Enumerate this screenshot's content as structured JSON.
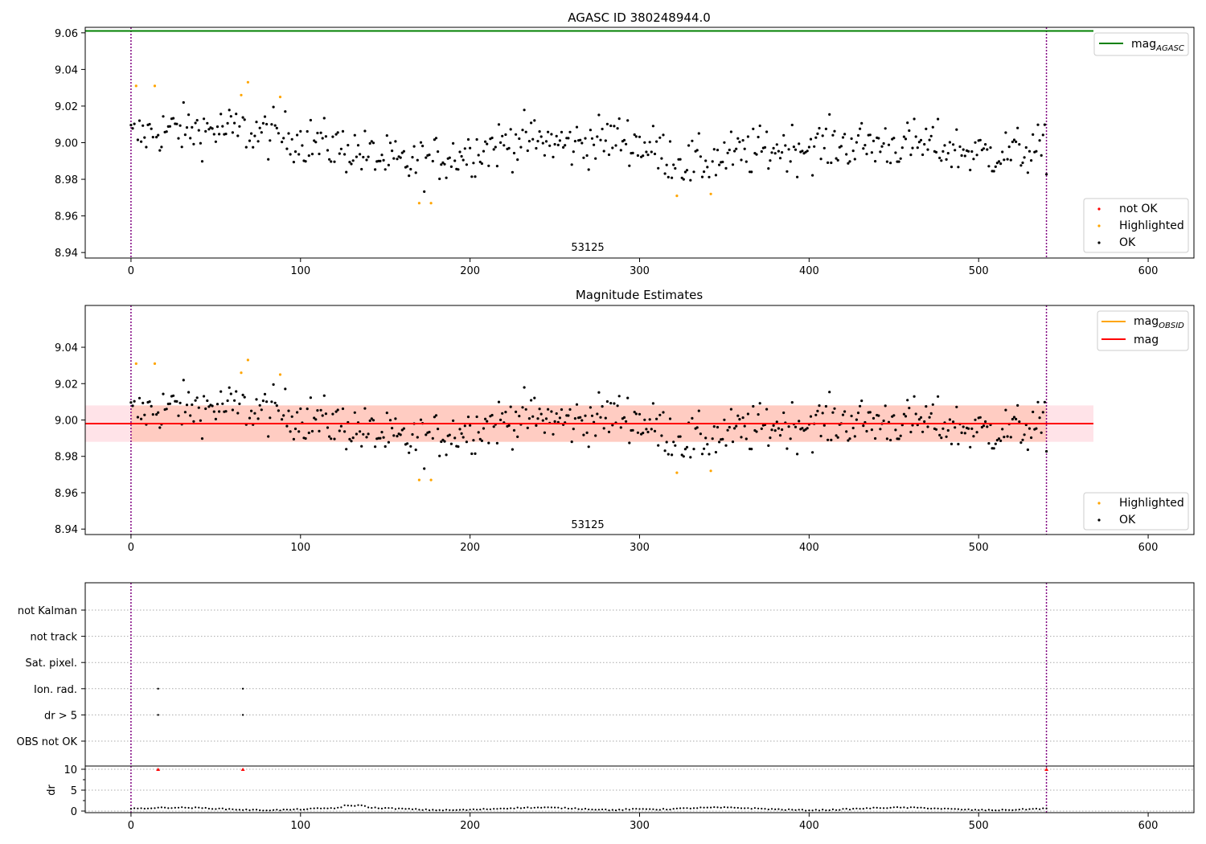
{
  "chart_data": [
    {
      "type": "scatter",
      "title": "AGASC ID 380248944.0",
      "xlim": [
        -27,
        627
      ],
      "ylim": [
        8.937,
        9.063
      ],
      "xticks": [
        0,
        100,
        200,
        300,
        400,
        500,
        600
      ],
      "yticks": [
        "8.94",
        "8.96",
        "8.98",
        "9.00",
        "9.02",
        "9.04",
        "9.06"
      ],
      "vlines": [
        0,
        540
      ],
      "obsid_label": "53125",
      "mag_agasc": 9.061,
      "legend_lines": [
        {
          "label": "mag",
          "sub": "AGASC",
          "color": "#008000"
        }
      ],
      "legend_points": [
        {
          "label": "not OK",
          "color": "#ff0000"
        },
        {
          "label": "Highlighted",
          "color": "#ffa500"
        },
        {
          "label": "OK",
          "color": "#000000"
        }
      ],
      "highlighted": [
        [
          3,
          9.031
        ],
        [
          14,
          9.031
        ],
        [
          65,
          9.026
        ],
        [
          69,
          9.033
        ],
        [
          88,
          9.025
        ],
        [
          170,
          8.967
        ],
        [
          177,
          8.967
        ],
        [
          322,
          8.971
        ],
        [
          342,
          8.972
        ]
      ]
    },
    {
      "type": "scatter",
      "title": "Magnitude Estimates",
      "xlim": [
        -27,
        627
      ],
      "ylim": [
        8.937,
        9.063
      ],
      "xticks": [
        0,
        100,
        200,
        300,
        400,
        500,
        600
      ],
      "yticks": [
        "8.94",
        "8.96",
        "8.98",
        "9.00",
        "9.02",
        "9.04"
      ],
      "vlines": [
        0,
        540
      ],
      "obsid_label": "53125",
      "mag": 8.998,
      "mag_band": [
        8.988,
        9.008
      ],
      "legend_lines": [
        {
          "label": "mag",
          "sub": "OBSID",
          "color": "#ffa500"
        },
        {
          "label": "mag",
          "sub": "",
          "color": "#ff0000"
        }
      ],
      "legend_points": [
        {
          "label": "Highlighted",
          "color": "#ffa500"
        },
        {
          "label": "OK",
          "color": "#000000"
        }
      ]
    },
    {
      "type": "scatter",
      "title": "",
      "xlim": [
        -27,
        627
      ],
      "xticks": [
        0,
        100,
        200,
        300,
        400,
        500,
        600
      ],
      "vlines": [
        0,
        540
      ],
      "flag_rows": [
        "not Kalman",
        "not track",
        "Sat. pixel.",
        "Ion. rad.",
        "dr > 5",
        "OBS not OK"
      ],
      "flags": [
        {
          "row": "Ion. rad.",
          "x": [
            16,
            66
          ]
        },
        {
          "row": "dr > 5",
          "x": [
            16,
            66
          ]
        }
      ],
      "dr": {
        "ylabel": "dr",
        "yticks": [
          "0",
          "5",
          "10"
        ],
        "ylim": [
          0,
          10
        ],
        "clipped_x": [
          16,
          66,
          540
        ]
      }
    }
  ]
}
